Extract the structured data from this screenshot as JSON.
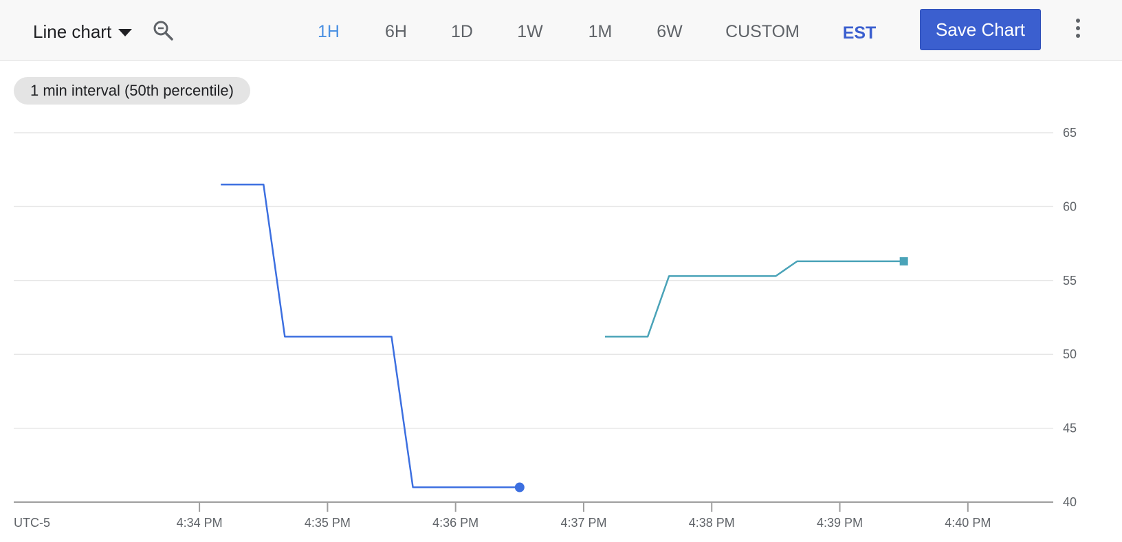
{
  "toolbar": {
    "chart_type_label": "Line chart",
    "time_ranges": [
      {
        "label": "1H",
        "active": true
      },
      {
        "label": "6H",
        "active": false
      },
      {
        "label": "1D",
        "active": false
      },
      {
        "label": "1W",
        "active": false
      },
      {
        "label": "1M",
        "active": false
      },
      {
        "label": "6W",
        "active": false
      },
      {
        "label": "CUSTOM",
        "active": false
      }
    ],
    "timezone": "EST",
    "save_label": "Save Chart"
  },
  "interval_chip": "1 min interval (50th percentile)",
  "colors": {
    "accent": "#3b5fcf",
    "active_range": "#4a90e2",
    "series_1": "#3c6fe0",
    "series_2": "#4aa3b8",
    "grid": "#e6e6e6",
    "axis": "#9e9e9e"
  },
  "chart_data": {
    "type": "line",
    "x_axis_labels": [
      "UTC-5",
      "4:34 PM",
      "4:35 PM",
      "4:36 PM",
      "4:37 PM",
      "4:38 PM",
      "4:39 PM",
      "4:40 PM"
    ],
    "x_ticks": [
      "4:34 PM",
      "4:35 PM",
      "4:36 PM",
      "4:37 PM",
      "4:38 PM",
      "4:39 PM",
      "4:40 PM"
    ],
    "xlim": [
      "4:32:33 PM",
      "4:40:40 PM"
    ],
    "ylim": [
      40,
      65
    ],
    "y_ticks": [
      40,
      45,
      50,
      55,
      60,
      65
    ],
    "grid": true,
    "series": [
      {
        "color": "#3c6fe0",
        "marker": "circle",
        "points": [
          {
            "x": "4:34:10 PM",
            "y": 61.5
          },
          {
            "x": "4:34:30 PM",
            "y": 61.5
          },
          {
            "x": "4:34:40 PM",
            "y": 51.2
          },
          {
            "x": "4:35:30 PM",
            "y": 51.2
          },
          {
            "x": "4:35:40 PM",
            "y": 41.0
          },
          {
            "x": "4:36:30 PM",
            "y": 41.0
          }
        ]
      },
      {
        "color": "#4aa3b8",
        "marker": "square",
        "points": [
          {
            "x": "4:37:10 PM",
            "y": 51.2
          },
          {
            "x": "4:37:30 PM",
            "y": 51.2
          },
          {
            "x": "4:37:40 PM",
            "y": 55.3
          },
          {
            "x": "4:38:30 PM",
            "y": 55.3
          },
          {
            "x": "4:38:40 PM",
            "y": 56.3
          },
          {
            "x": "4:39:30 PM",
            "y": 56.3
          }
        ]
      }
    ]
  }
}
